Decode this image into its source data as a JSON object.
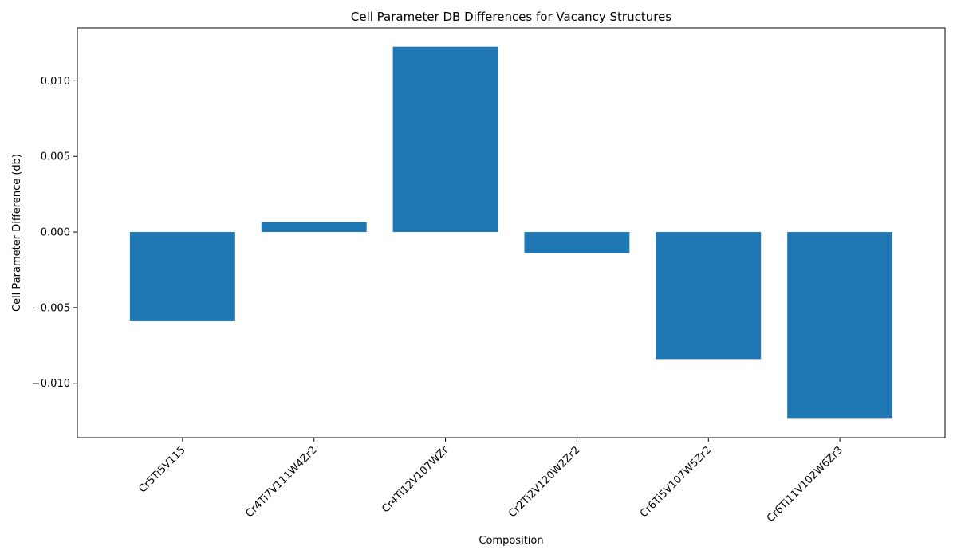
{
  "chart_data": {
    "type": "bar",
    "title": "Cell Parameter DB Differences for Vacancy Structures",
    "xlabel": "Composition",
    "ylabel": "Cell Parameter Difference (db)",
    "categories": [
      "Cr5Ti5V115",
      "Cr4Ti7V111W4Zr2",
      "Cr4Ti12V107WZr",
      "Cr2Ti2V120W2Zr2",
      "Cr6Ti5V107W5Zr2",
      "Cr6Ti11V102W6Zr3"
    ],
    "values": [
      -0.0059,
      0.00065,
      0.01225,
      -0.0014,
      -0.0084,
      -0.0123
    ],
    "ylim": [
      -0.0136,
      0.0135
    ],
    "yticks": [
      -0.01,
      -0.005,
      0.0,
      0.005,
      0.01
    ],
    "ytick_labels": [
      "−0.010",
      "−0.005",
      "0.000",
      "0.005",
      "0.010"
    ],
    "bar_color": "#1f77b4",
    "grid": false,
    "legend": "none"
  }
}
